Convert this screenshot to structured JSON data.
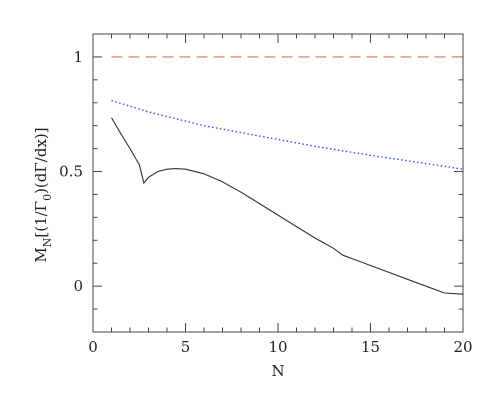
{
  "chart_data": {
    "type": "line",
    "xlabel": "N",
    "ylabel_main": "M",
    "ylabel_sub": "N",
    "ylabel_rest": "[(1/Γ",
    "ylabel_sub2": "0",
    "ylabel_tail": ")(dΓ/dx)]",
    "xlim": [
      0,
      20
    ],
    "ylim": [
      -0.2,
      1.1
    ],
    "x_ticks": [
      0,
      5,
      10,
      15,
      20
    ],
    "x_tick_labels": [
      "0",
      "5",
      "10",
      "15",
      "20"
    ],
    "y_ticks": [
      0,
      0.5,
      1
    ],
    "y_tick_labels": [
      "0",
      "0.5",
      "1"
    ],
    "grid": false,
    "series": [
      {
        "style": "dashed",
        "color": "#e0705a",
        "x": [
          1,
          20
        ],
        "y": [
          1.0,
          1.0
        ]
      },
      {
        "style": "dotted",
        "color": "#3a4fd8",
        "x": [
          1,
          2,
          3,
          4,
          5,
          6,
          7,
          8,
          9,
          10,
          11,
          12,
          13,
          14,
          15,
          16,
          17,
          18,
          19,
          20
        ],
        "y": [
          0.81,
          0.785,
          0.76,
          0.74,
          0.72,
          0.7,
          0.685,
          0.67,
          0.655,
          0.64,
          0.625,
          0.61,
          0.597,
          0.584,
          0.571,
          0.559,
          0.547,
          0.535,
          0.523,
          0.51
        ]
      },
      {
        "style": "solid",
        "color": "#333333",
        "x": [
          1,
          1.5,
          2,
          2.5,
          2.75,
          3,
          3.5,
          4,
          4.5,
          5,
          6,
          7,
          8,
          9,
          10,
          11,
          12,
          13,
          13.5,
          14,
          15,
          16,
          17,
          18,
          19,
          20
        ],
        "y": [
          0.735,
          0.665,
          0.6,
          0.53,
          0.45,
          0.475,
          0.5,
          0.51,
          0.513,
          0.51,
          0.49,
          0.455,
          0.41,
          0.36,
          0.31,
          0.26,
          0.21,
          0.165,
          0.135,
          0.12,
          0.09,
          0.06,
          0.03,
          0.0,
          -0.03,
          -0.035
        ]
      }
    ]
  }
}
